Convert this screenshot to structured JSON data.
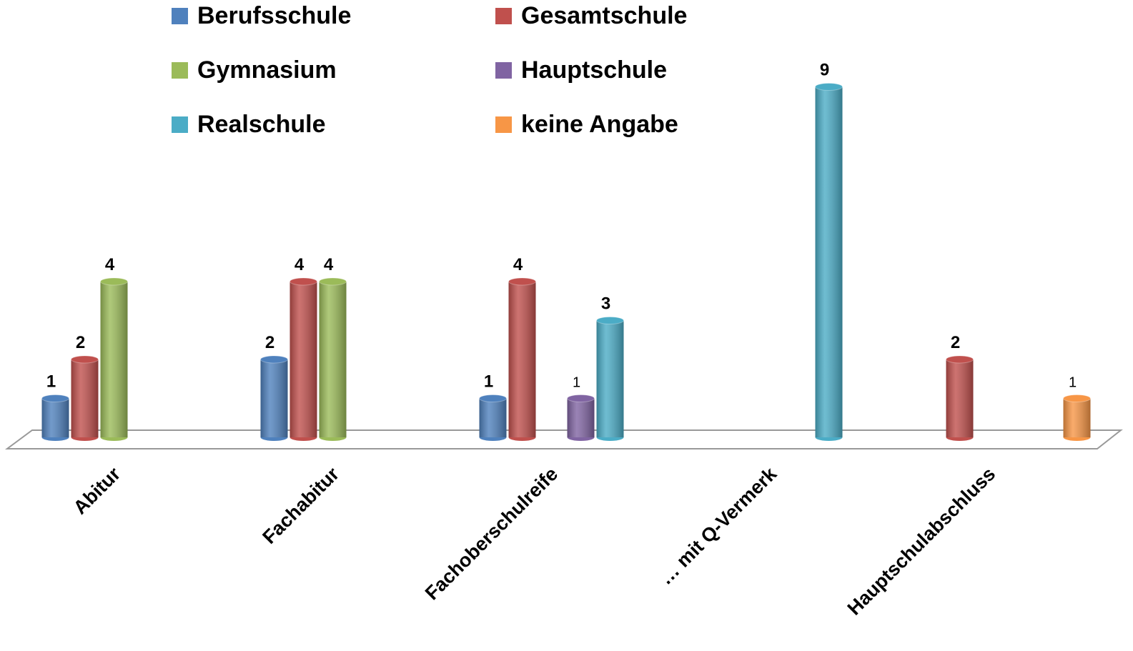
{
  "chart_data": {
    "type": "bar",
    "categories": [
      "Abitur",
      "Fachabitur",
      "Fachoberschulreife",
      "… mit Q-Vermerk",
      "Hauptschulabschluss"
    ],
    "series": [
      {
        "name": "Berufsschule",
        "color": "#4f81bd",
        "values": [
          1,
          2,
          1,
          null,
          null
        ]
      },
      {
        "name": "Gesamtschule",
        "color": "#c0504d",
        "values": [
          2,
          4,
          4,
          null,
          2
        ]
      },
      {
        "name": "Gymnasium",
        "color": "#9bbb59",
        "values": [
          4,
          4,
          null,
          null,
          null
        ]
      },
      {
        "name": "Hauptschule",
        "color": "#8064a2",
        "values": [
          null,
          null,
          1,
          null,
          null
        ]
      },
      {
        "name": "Realschule",
        "color": "#4bacc6",
        "values": [
          null,
          null,
          3,
          9,
          null
        ]
      },
      {
        "name": "keine Angabe",
        "color": "#f79646",
        "values": [
          null,
          null,
          null,
          null,
          1
        ]
      }
    ],
    "ylim": [
      0,
      10
    ]
  }
}
